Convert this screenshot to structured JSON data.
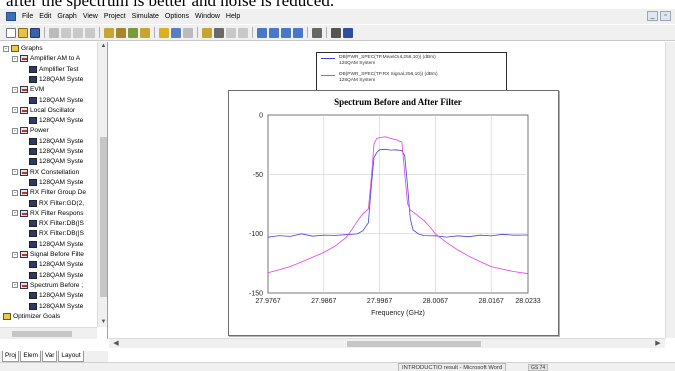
{
  "document_text_above": "after the spectrum is better and noise is reduced.",
  "menu": [
    "File",
    "Edit",
    "Graph",
    "View",
    "Project",
    "Simulate",
    "Options",
    "Window",
    "Help"
  ],
  "window_buttons": [
    "_",
    "▫"
  ],
  "tree": {
    "items": [
      {
        "label": "Graphs",
        "level": 0,
        "icon": "folder-icon",
        "exp": "-"
      },
      {
        "label": "Amplifier AM to A",
        "level": 1,
        "icon": "graph-icon",
        "exp": "-"
      },
      {
        "label": "Amplifier Test",
        "level": 2,
        "icon": "data-icon"
      },
      {
        "label": "128QAM Syste",
        "level": 2,
        "icon": "data-icon"
      },
      {
        "label": "EVM",
        "level": 1,
        "icon": "graph-icon",
        "exp": "-"
      },
      {
        "label": "128QAM Syste",
        "level": 2,
        "icon": "data-icon"
      },
      {
        "label": "Local Oscillator",
        "level": 1,
        "icon": "graph-icon",
        "exp": "-"
      },
      {
        "label": "128QAM Syste",
        "level": 2,
        "icon": "data-icon"
      },
      {
        "label": "Power",
        "level": 1,
        "icon": "graph-icon",
        "exp": "-"
      },
      {
        "label": "128QAM Syste",
        "level": 2,
        "icon": "data-icon"
      },
      {
        "label": "128QAM Syste",
        "level": 2,
        "icon": "data-icon"
      },
      {
        "label": "128QAM Syste",
        "level": 2,
        "icon": "data-icon"
      },
      {
        "label": "RX Constellation",
        "level": 1,
        "icon": "graph-icon",
        "exp": "-"
      },
      {
        "label": "128QAM Syste",
        "level": 2,
        "icon": "data-icon"
      },
      {
        "label": "RX Filter Group De",
        "level": 1,
        "icon": "graph-icon",
        "exp": "-"
      },
      {
        "label": "RX Filter:GD(2,",
        "level": 2,
        "icon": "data-icon"
      },
      {
        "label": "RX Filter Respons",
        "level": 1,
        "icon": "graph-icon",
        "exp": "-"
      },
      {
        "label": "RX Filter:DB(|S",
        "level": 2,
        "icon": "data-icon"
      },
      {
        "label": "RX Filter:DB(|S",
        "level": 2,
        "icon": "data-icon"
      },
      {
        "label": "128QAM Syste",
        "level": 2,
        "icon": "data-icon"
      },
      {
        "label": "Signal Before Filte",
        "level": 1,
        "icon": "graph-icon",
        "exp": "-"
      },
      {
        "label": "128QAM Syste",
        "level": 2,
        "icon": "data-icon"
      },
      {
        "label": "128QAM Syste",
        "level": 2,
        "icon": "data-icon"
      },
      {
        "label": "Spectrum Before ;",
        "level": 1,
        "icon": "graph-icon",
        "exp": "-"
      },
      {
        "label": "128QAM Syste",
        "level": 2,
        "icon": "data-icon"
      },
      {
        "label": "128QAM Syste",
        "level": 2,
        "icon": "data-icon"
      },
      {
        "label": "Optimizer Goals",
        "level": 0,
        "icon": "folder-icon"
      }
    ]
  },
  "tabs": [
    "Proj",
    "Elem",
    "Var",
    "Layout"
  ],
  "legend": {
    "entries": [
      {
        "line1": "DB(PWR_SPEC(TP.MeasOut,256,10)) (dBm)",
        "line2": "128QAM System",
        "color": "#4444dd"
      },
      {
        "line1": "DB(PWR_SPEC(TP.RX Signal,256,10)) (dBm)",
        "line2": "128QAM System",
        "color": "#e040e0"
      }
    ]
  },
  "taskbar": {
    "item": "INTRODUCTIO result - Microsoft Word",
    "badge": "GS 74"
  },
  "chart_data": {
    "type": "line",
    "title": "Spectrum Before and After Filter",
    "xlabel": "Frequency (GHz)",
    "ylabel": "",
    "xlim": [
      27.9767,
      28.0233
    ],
    "ylim": [
      -150,
      0
    ],
    "xticks": [
      27.9767,
      27.9867,
      27.9967,
      28.0067,
      28.0167,
      28.0233
    ],
    "xtick_labels": [
      "27.9767",
      "27.9867",
      "27.9967",
      "28.0067",
      "28.0167",
      "28.0233"
    ],
    "yticks": [
      0,
      -50,
      -100,
      -150
    ],
    "ytick_labels": [
      "0",
      "-50",
      "-100",
      "-150"
    ],
    "grid": true,
    "series": [
      {
        "color": "#4444dd",
        "x": [
          27.9767,
          27.9787,
          27.9807,
          27.9827,
          27.9847,
          27.9867,
          27.9887,
          27.9907,
          27.9927,
          27.9937,
          27.9947,
          27.9952,
          27.9957,
          27.9962,
          27.9967,
          27.9977,
          27.9987,
          27.9997,
          28.0007,
          28.0012,
          28.0017,
          28.0022,
          28.0027,
          28.0037,
          28.0047,
          28.0067,
          28.0087,
          28.0107,
          28.0127,
          28.0147,
          28.0167,
          28.0187,
          28.0207,
          28.0233
        ],
        "y": [
          -103,
          -102,
          -103,
          -101,
          -103,
          -102,
          -102,
          -101,
          -100,
          -97,
          -90,
          -60,
          -35,
          -31,
          -29,
          -29,
          -30,
          -30,
          -31,
          -35,
          -60,
          -88,
          -97,
          -100,
          -101,
          -101,
          -102,
          -101,
          -102,
          -101,
          -102,
          -101,
          -102,
          -102
        ]
      },
      {
        "color": "#e040e0",
        "x": [
          27.9767,
          27.9787,
          27.9807,
          27.9827,
          27.9847,
          27.9867,
          27.9887,
          27.9907,
          27.9917,
          27.9927,
          27.9937,
          27.9947,
          27.9952,
          27.9957,
          27.9962,
          27.9967,
          27.9977,
          27.9987,
          27.9997,
          28.0007,
          28.0012,
          28.0017,
          28.0022,
          28.0027,
          28.0037,
          28.0047,
          28.0057,
          28.0067,
          28.0087,
          28.0107,
          28.0127,
          28.0147,
          28.0167,
          28.0187,
          28.0207,
          28.0233
        ],
        "y": [
          -133,
          -130,
          -127,
          -123,
          -119,
          -115,
          -110,
          -103,
          -97,
          -90,
          -84,
          -80,
          -55,
          -25,
          -20,
          -19,
          -18,
          -19,
          -20,
          -22,
          -48,
          -74,
          -80,
          -82,
          -86,
          -90,
          -95,
          -101,
          -108,
          -114,
          -119,
          -123,
          -127,
          -129,
          -131,
          -133
        ]
      }
    ]
  }
}
